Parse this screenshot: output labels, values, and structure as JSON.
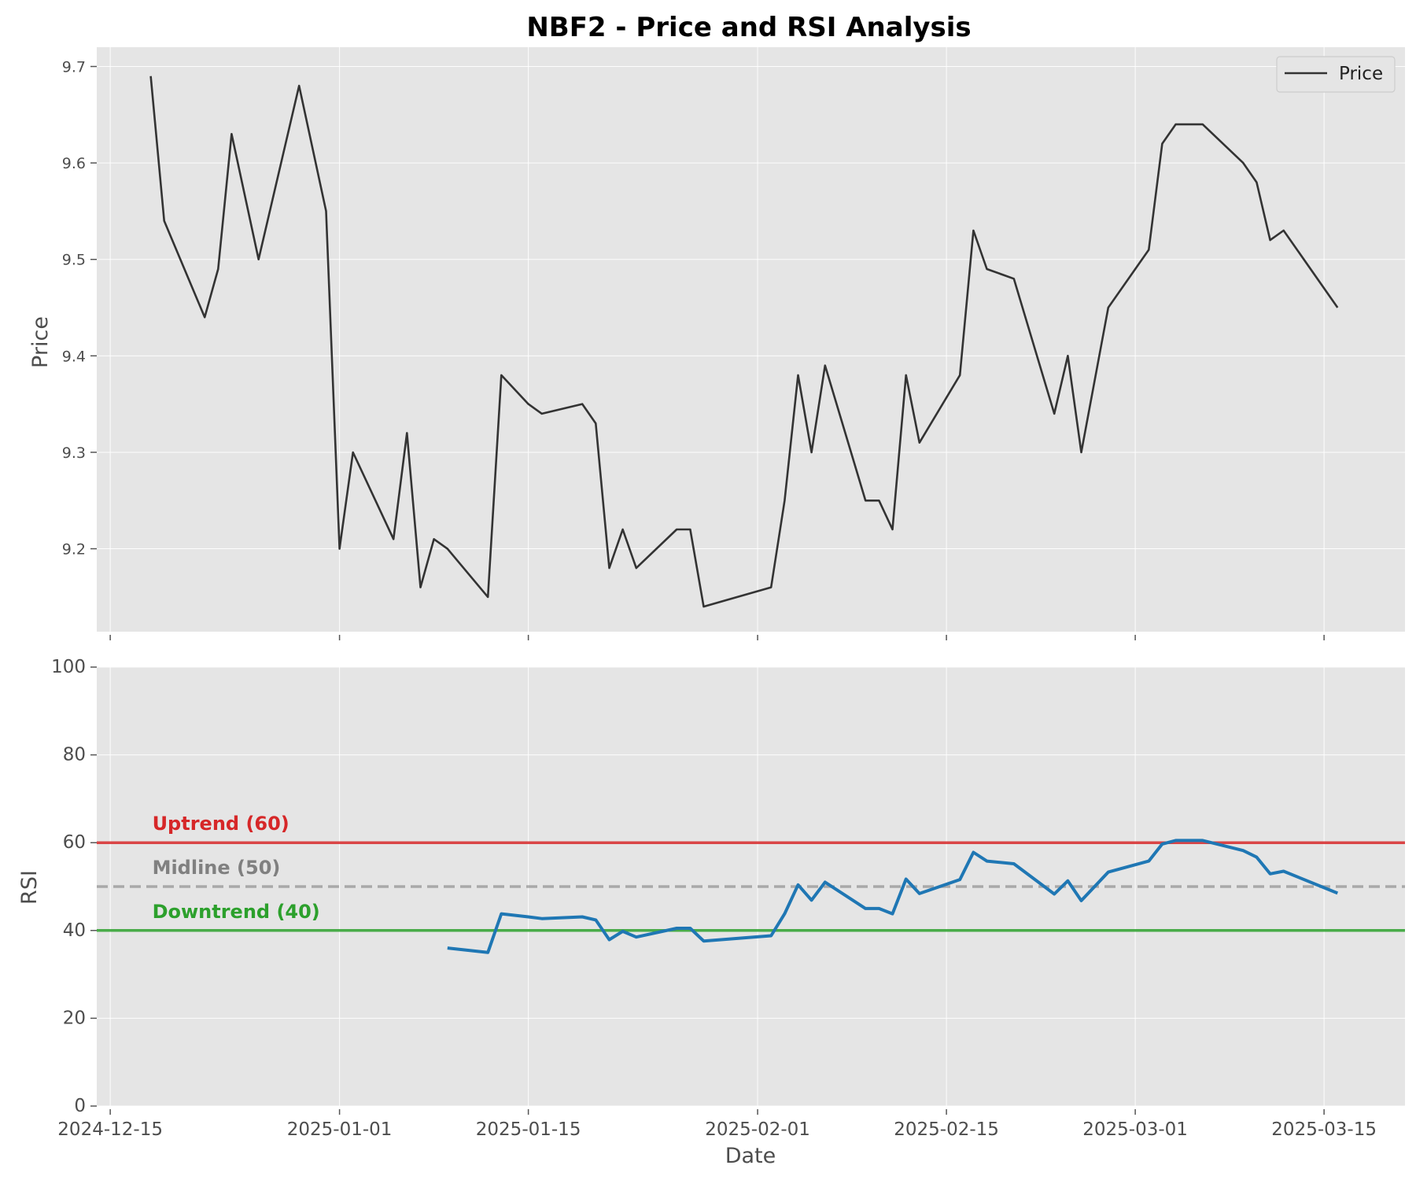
{
  "chart_data": [
    {
      "type": "line",
      "title": "NBF2 - Price and RSI Analysis",
      "ylabel": "Price",
      "xlabel": "",
      "ylim": [
        9.114,
        9.72
      ],
      "xlim": [
        "2024-12-14",
        "2025-03-21"
      ],
      "y_ticks": [
        9.2,
        9.3,
        9.4,
        9.5,
        9.6,
        9.7
      ],
      "y_tick_labels": [
        "9.2",
        "9.3",
        "9.4",
        "9.5",
        "9.6",
        "9.7"
      ],
      "legend": {
        "position": "top-right",
        "entries": [
          "Price"
        ]
      },
      "grid": true,
      "series": [
        {
          "name": "Price",
          "color": "#333333",
          "points": [
            [
              "2024-12-18",
              9.69
            ],
            [
              "2024-12-19",
              9.54
            ],
            [
              "2024-12-22",
              9.44
            ],
            [
              "2024-12-23",
              9.49
            ],
            [
              "2024-12-24",
              9.63
            ],
            [
              "2024-12-26",
              9.5
            ],
            [
              "2024-12-29",
              9.68
            ],
            [
              "2024-12-31",
              9.55
            ],
            [
              "2025-01-01",
              9.2
            ],
            [
              "2025-01-02",
              9.3
            ],
            [
              "2025-01-05",
              9.21
            ],
            [
              "2025-01-06",
              9.32
            ],
            [
              "2025-01-07",
              9.16
            ],
            [
              "2025-01-08",
              9.21
            ],
            [
              "2025-01-09",
              9.2
            ],
            [
              "2025-01-12",
              9.15
            ],
            [
              "2025-01-13",
              9.38
            ],
            [
              "2025-01-15",
              9.35
            ],
            [
              "2025-01-16",
              9.34
            ],
            [
              "2025-01-19",
              9.35
            ],
            [
              "2025-01-20",
              9.33
            ],
            [
              "2025-01-21",
              9.18
            ],
            [
              "2025-01-22",
              9.22
            ],
            [
              "2025-01-23",
              9.18
            ],
            [
              "2025-01-26",
              9.22
            ],
            [
              "2025-01-27",
              9.22
            ],
            [
              "2025-01-28",
              9.14
            ],
            [
              "2025-02-02",
              9.16
            ],
            [
              "2025-02-03",
              9.25
            ],
            [
              "2025-02-04",
              9.38
            ],
            [
              "2025-02-05",
              9.3
            ],
            [
              "2025-02-06",
              9.39
            ],
            [
              "2025-02-09",
              9.25
            ],
            [
              "2025-02-10",
              9.25
            ],
            [
              "2025-02-11",
              9.22
            ],
            [
              "2025-02-12",
              9.38
            ],
            [
              "2025-02-13",
              9.31
            ],
            [
              "2025-02-16",
              9.38
            ],
            [
              "2025-02-17",
              9.53
            ],
            [
              "2025-02-18",
              9.49
            ],
            [
              "2025-02-20",
              9.48
            ],
            [
              "2025-02-23",
              9.34
            ],
            [
              "2025-02-24",
              9.4
            ],
            [
              "2025-02-25",
              9.3
            ],
            [
              "2025-02-27",
              9.45
            ],
            [
              "2025-03-02",
              9.51
            ],
            [
              "2025-03-03",
              9.62
            ],
            [
              "2025-03-04",
              9.64
            ],
            [
              "2025-03-06",
              9.64
            ],
            [
              "2025-03-09",
              9.6
            ],
            [
              "2025-03-10",
              9.58
            ],
            [
              "2025-03-11",
              9.52
            ],
            [
              "2025-03-12",
              9.53
            ],
            [
              "2025-03-16",
              9.45
            ]
          ]
        }
      ]
    },
    {
      "type": "line",
      "title": "",
      "ylabel": "RSI",
      "xlabel": "Date",
      "ylim": [
        0,
        100
      ],
      "xlim": [
        "2024-12-14",
        "2025-03-21"
      ],
      "y_ticks": [
        0,
        20,
        40,
        60,
        80,
        100
      ],
      "y_tick_labels": [
        "0",
        "20",
        "40",
        "60",
        "80",
        "100"
      ],
      "x_ticks": [
        "2024-12-15",
        "2025-01-01",
        "2025-01-15",
        "2025-02-01",
        "2025-02-15",
        "2025-03-01",
        "2025-03-15"
      ],
      "x_tick_labels": [
        "2024-12-15",
        "2025-01-01",
        "2025-01-15",
        "2025-02-01",
        "2025-02-15",
        "2025-03-01",
        "2025-03-15"
      ],
      "grid": true,
      "reference_lines": [
        {
          "label": "Uptrend (60)",
          "value": 60,
          "color": "#d62728",
          "style": "solid"
        },
        {
          "label": "Midline (50)",
          "value": 50,
          "color": "#808080",
          "style": "dashed"
        },
        {
          "label": "Downtrend (40)",
          "value": 40,
          "color": "#2ca02c",
          "style": "solid"
        }
      ],
      "series": [
        {
          "name": "",
          "color": "#1f77b4",
          "points": [
            [
              "2025-01-09",
              36.0
            ],
            [
              "2025-01-12",
              35.0
            ],
            [
              "2025-01-13",
              43.8
            ],
            [
              "2025-01-15",
              43.1
            ],
            [
              "2025-01-16",
              42.7
            ],
            [
              "2025-01-19",
              43.1
            ],
            [
              "2025-01-20",
              42.4
            ],
            [
              "2025-01-21",
              37.9
            ],
            [
              "2025-01-22",
              39.8
            ],
            [
              "2025-01-23",
              38.5
            ],
            [
              "2025-01-26",
              40.5
            ],
            [
              "2025-01-27",
              40.5
            ],
            [
              "2025-01-28",
              37.6
            ],
            [
              "2025-02-02",
              38.8
            ],
            [
              "2025-02-03",
              43.8
            ],
            [
              "2025-02-04",
              50.4
            ],
            [
              "2025-02-05",
              46.9
            ],
            [
              "2025-02-06",
              51.0
            ],
            [
              "2025-02-09",
              45.0
            ],
            [
              "2025-02-10",
              45.0
            ],
            [
              "2025-02-11",
              43.8
            ],
            [
              "2025-02-12",
              51.7
            ],
            [
              "2025-02-13",
              48.4
            ],
            [
              "2025-02-16",
              51.6
            ],
            [
              "2025-02-17",
              57.8
            ],
            [
              "2025-02-18",
              55.8
            ],
            [
              "2025-02-20",
              55.2
            ],
            [
              "2025-02-23",
              48.3
            ],
            [
              "2025-02-24",
              51.3
            ],
            [
              "2025-02-25",
              46.8
            ],
            [
              "2025-02-27",
              53.3
            ],
            [
              "2025-03-02",
              55.8
            ],
            [
              "2025-03-03",
              59.7
            ],
            [
              "2025-03-04",
              60.5
            ],
            [
              "2025-03-06",
              60.5
            ],
            [
              "2025-03-09",
              58.2
            ],
            [
              "2025-03-10",
              56.7
            ],
            [
              "2025-03-11",
              52.9
            ],
            [
              "2025-03-12",
              53.5
            ],
            [
              "2025-03-16",
              48.5
            ]
          ]
        }
      ]
    }
  ]
}
